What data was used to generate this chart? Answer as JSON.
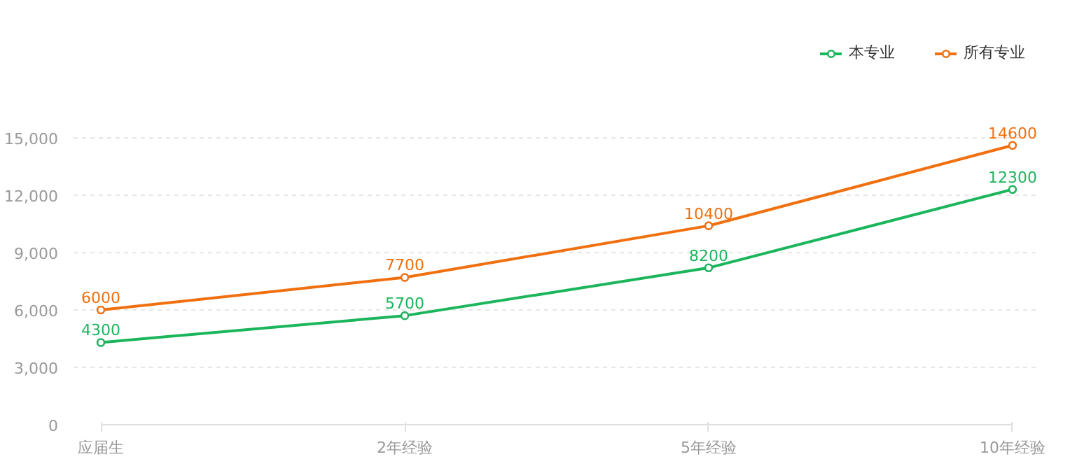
{
  "chart_data": {
    "type": "line",
    "categories": [
      "应届生",
      "2年经验",
      "5年经验",
      "10年经验"
    ],
    "series": [
      {
        "name": "本专业",
        "color": "#1bb55c",
        "values": [
          4300,
          5700,
          8200,
          12300
        ]
      },
      {
        "name": "所有专业",
        "color": "#f0700f",
        "values": [
          6000,
          7700,
          10400,
          14600
        ]
      }
    ],
    "ylim": [
      0,
      15000
    ],
    "yticks": [
      0,
      {
        "value": 3000,
        "label": "3,000"
      },
      {
        "value": 6000,
        "label": "6,000"
      },
      {
        "value": 9000,
        "label": "9,000"
      },
      {
        "value": 12000,
        "label": "12,000"
      },
      {
        "value": 15000,
        "label": "15,000"
      }
    ],
    "grid": "y",
    "legend": "top right",
    "marker": "circle",
    "line_style": "solid",
    "data_labels": true
  }
}
